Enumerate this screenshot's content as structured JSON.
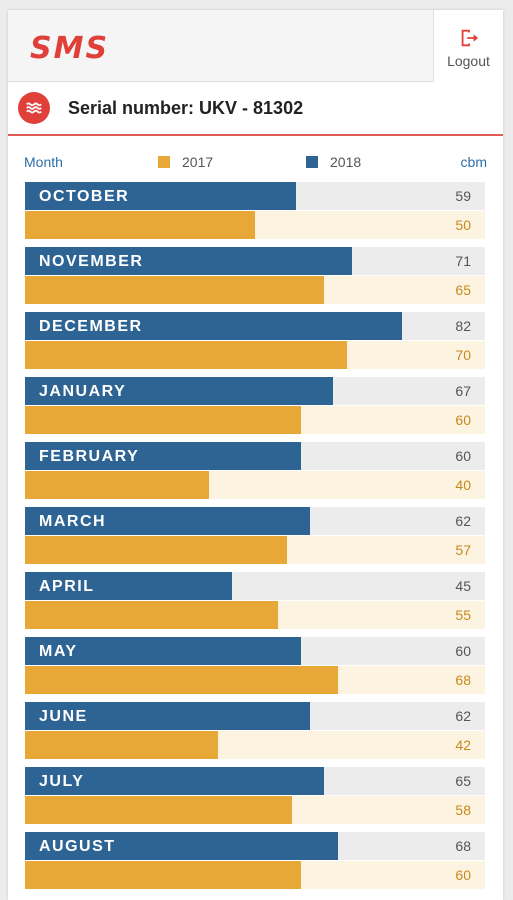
{
  "header": {
    "logo_text": "SMS",
    "logout_label": "Logout"
  },
  "serial": {
    "label": "Serial number: UKV - 81302"
  },
  "legend": {
    "month_label": "Month",
    "unit_label": "cbm",
    "series": [
      {
        "name": "2017",
        "color": "#e8a838"
      },
      {
        "name": "2018",
        "color": "#2e6494"
      }
    ]
  },
  "chart_data": {
    "type": "bar",
    "categories": [
      "OCTOBER",
      "NOVEMBER",
      "DECEMBER",
      "JANUARY",
      "FEBRUARY",
      "MARCH",
      "APRIL",
      "MAY",
      "JUNE",
      "JULY",
      "AUGUST"
    ],
    "series": [
      {
        "name": "2018",
        "values": [
          59,
          71,
          82,
          67,
          60,
          62,
          45,
          60,
          62,
          65,
          68
        ]
      },
      {
        "name": "2017",
        "values": [
          50,
          65,
          70,
          60,
          40,
          57,
          55,
          68,
          42,
          58,
          60
        ]
      }
    ],
    "xlabel": "Month",
    "ylabel": "cbm",
    "ylim": [
      0,
      100
    ]
  }
}
